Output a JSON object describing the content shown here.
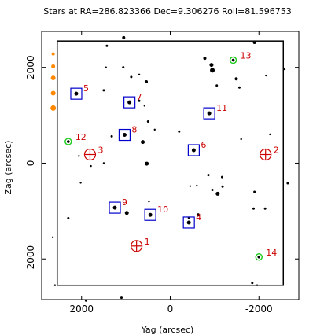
{
  "chart_data": {
    "type": "scatter",
    "title": "Stars at RA=286.823366 Dec=9.306276 Roll=81.596753",
    "xlabel": "Yag (arcsec)",
    "ylabel": "Zag (arcsec)",
    "xlim": [
      2900,
      -2900
    ],
    "ylim": [
      -2850,
      2750
    ],
    "x_ticks": [
      -2000,
      0,
      2000
    ],
    "y_ticks": [
      -2000,
      0,
      2000
    ],
    "grid": false,
    "colors": {
      "box": "#0000cc",
      "fid": "#cc0000",
      "green": "#22cc22",
      "orange": "#ff8800",
      "star": "#000000",
      "frame": "#000000"
    },
    "frame": {
      "yag": [
        -2550,
        2550
      ],
      "zag": [
        -2550,
        2550
      ]
    },
    "guide_stars": [
      {
        "label": "5",
        "yag": 2120,
        "zag": 1450
      },
      {
        "label": "7",
        "yag": 920,
        "zag": 1270
      },
      {
        "label": "8",
        "yag": 1030,
        "zag": 590
      },
      {
        "label": "11",
        "yag": -880,
        "zag": 1040
      },
      {
        "label": "6",
        "yag": -530,
        "zag": 270
      },
      {
        "label": "9",
        "yag": 1250,
        "zag": -930
      },
      {
        "label": "10",
        "yag": 450,
        "zag": -1080
      },
      {
        "label": "4",
        "yag": -420,
        "zag": -1240
      }
    ],
    "fid_lights": [
      {
        "label": "3",
        "yag": 1810,
        "zag": 180
      },
      {
        "label": "2",
        "yag": -2150,
        "zag": 180
      },
      {
        "label": "1",
        "yag": 760,
        "zag": -1730
      }
    ],
    "acq_stars": [
      {
        "label": "12",
        "yag": 2300,
        "zag": 450
      },
      {
        "label": "13",
        "yag": -1420,
        "zag": 2150
      },
      {
        "label": "14",
        "yag": -2000,
        "zag": -1960
      }
    ],
    "bad_stars": [
      {
        "yag": 2640,
        "zag": 1780,
        "size": 3
      },
      {
        "yag": 2640,
        "zag": 1460,
        "size": 3
      },
      {
        "yag": 2640,
        "zag": 1150,
        "size": 3.5
      },
      {
        "yag": 2640,
        "zag": 2280,
        "size": 2
      },
      {
        "yag": 2640,
        "zag": 2020,
        "size": 2.5
      }
    ],
    "field_stars": [
      {
        "yag": -1900,
        "zag": 2520,
        "size": 2
      },
      {
        "yag": -2580,
        "zag": 1960,
        "size": 1.2
      },
      {
        "yag": -930,
        "zag": 2050,
        "size": 2.5
      },
      {
        "yag": -950,
        "zag": 1940,
        "size": 3
      },
      {
        "yag": -780,
        "zag": 2190,
        "size": 2
      },
      {
        "yag": -1490,
        "zag": 1760,
        "size": 2
      },
      {
        "yag": -1050,
        "zag": 1620,
        "size": 1.5
      },
      {
        "yag": 1060,
        "zag": 2000,
        "size": 1.5
      },
      {
        "yag": 1050,
        "zag": 2620,
        "size": 2
      },
      {
        "yag": 1430,
        "zag": 2450,
        "size": 1.5
      },
      {
        "yag": 1450,
        "zag": 2000,
        "size": 1.2
      },
      {
        "yag": 880,
        "zag": 1800,
        "size": 1.5
      },
      {
        "yag": 540,
        "zag": 1700,
        "size": 2
      },
      {
        "yag": 700,
        "zag": 1850,
        "size": 1.2
      },
      {
        "yag": 1500,
        "zag": 1520,
        "size": 1.5
      },
      {
        "yag": 700,
        "zag": 1300,
        "size": 1.5
      },
      {
        "yag": 500,
        "zag": 870,
        "size": 1.5
      },
      {
        "yag": 350,
        "zag": 700,
        "size": 1.2
      },
      {
        "yag": 620,
        "zag": 440,
        "size": 2.5
      },
      {
        "yag": 1320,
        "zag": 560,
        "size": 1.5
      },
      {
        "yag": 530,
        "zag": -10,
        "size": 2.5
      },
      {
        "yag": 1500,
        "zag": 0,
        "size": 1.2
      },
      {
        "yag": 2020,
        "zag": -410,
        "size": 1.2
      },
      {
        "yag": 2060,
        "zag": 150,
        "size": 1.2
      },
      {
        "yag": -1560,
        "zag": 1580,
        "size": 1.5
      },
      {
        "yag": -2160,
        "zag": 1830,
        "size": 1.2
      },
      {
        "yag": -1600,
        "zag": 500,
        "size": 1.2
      },
      {
        "yag": -2250,
        "zag": 600,
        "size": 1.2
      },
      {
        "yag": -2650,
        "zag": -420,
        "size": 1.5
      },
      {
        "yag": -200,
        "zag": 660,
        "size": 1.5
      },
      {
        "yag": -450,
        "zag": -480,
        "size": 1.2
      },
      {
        "yag": -600,
        "zag": -470,
        "size": 1.2
      },
      {
        "yag": -950,
        "zag": -560,
        "size": 1.5
      },
      {
        "yag": -1070,
        "zag": -640,
        "size": 2.5
      },
      {
        "yag": -1180,
        "zag": -490,
        "size": 1.5
      },
      {
        "yag": -1170,
        "zag": -290,
        "size": 1.5
      },
      {
        "yag": -860,
        "zag": -250,
        "size": 1.5
      },
      {
        "yag": -1900,
        "zag": -600,
        "size": 1.5
      },
      {
        "yag": -1880,
        "zag": -950,
        "size": 1.5
      },
      {
        "yag": -2140,
        "zag": -950,
        "size": 1.5
      },
      {
        "yag": -1850,
        "zag": -2500,
        "size": 1.5
      },
      {
        "yag": 980,
        "zag": -1040,
        "size": 2.5
      },
      {
        "yag": 480,
        "zag": -800,
        "size": 1.2
      },
      {
        "yag": 2300,
        "zag": -1150,
        "size": 1.5
      },
      {
        "yag": -630,
        "zag": -1080,
        "size": 2
      },
      {
        "yag": -420,
        "zag": -1140,
        "size": 1.5
      },
      {
        "yag": 2650,
        "zag": -1550,
        "size": 1.2
      },
      {
        "yag": 2600,
        "zag": -2550,
        "size": 1.2
      },
      {
        "yag": 1100,
        "zag": -2810,
        "size": 1.5
      },
      {
        "yag": 1900,
        "zag": -2870,
        "size": 1.5
      },
      {
        "yag": -1960,
        "zag": -2550,
        "size": 1.2
      },
      {
        "yag": 1790,
        "zag": -60,
        "size": 1.2
      },
      {
        "yag": 580,
        "zag": 1200,
        "size": 1.2
      }
    ]
  }
}
